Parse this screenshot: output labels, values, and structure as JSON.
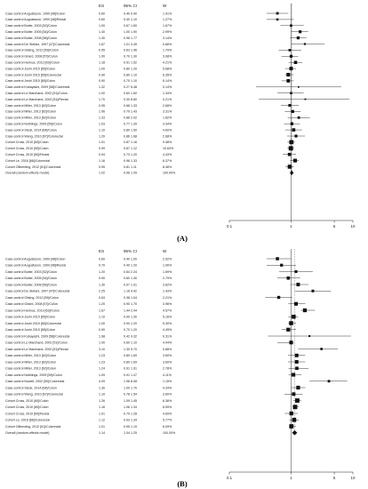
{
  "header": {
    "es": "ES",
    "ci": "95% CI",
    "w": "W"
  },
  "panels": [
    {
      "label": "(A)"
    },
    {
      "label": "(B)"
    }
  ],
  "chart_data": [
    {
      "type": "forest",
      "x_scale": "log",
      "xlim": [
        0.1,
        10
      ],
      "x_ticks": [
        "0.1",
        "1",
        "5",
        "10"
      ],
      "summary_label": "Overall (random-effects model)",
      "rows": [
        {
          "study": "Case-control Augustsson, 1999 [48]/Colon",
          "es": "0.60",
          "ci": "0.40   0.90",
          "w": "1.91%",
          "e": 0.6,
          "l": 0.4,
          "u": 0.9
        },
        {
          "study": "Case-control Augustsson, 1999 [48]/Rectal",
          "es": "0.60",
          "ci": "0.40   1.10",
          "w": "1.27%",
          "e": 0.6,
          "l": 0.4,
          "u": 1.1
        },
        {
          "study": "Case-control Butler, 2003 [52]/Colon",
          "es": "1.00",
          "ci": "0.67   1.60",
          "w": "1.67%",
          "e": 1.0,
          "l": 0.67,
          "u": 1.6
        },
        {
          "study": "Case-control Butler, 2005 [54]/Colon",
          "es": "1.40",
          "ci": "1.00   1.90",
          "w": "2.99%",
          "e": 1.4,
          "l": 1.0,
          "u": 1.9
        },
        {
          "study": "Case-control Butler, 2008 [56]/Colon",
          "es": "1.30",
          "ci": "0.96   1.77",
          "w": "3.14%",
          "e": 1.3,
          "l": 0.96,
          "u": 1.77
        },
        {
          "study": "Case-control De Stefani, 1997 [47]/Colorectal",
          "es": "1.67",
          "ci": "1.01   3.49",
          "w": "0.66%",
          "e": 1.67,
          "l": 1.01,
          "u": 3.49
        },
        {
          "study": "Case-control Gilsing, 2012 [59]/Colon",
          "es": "0.95",
          "ci": "0.63   1.46",
          "w": "1.79%",
          "e": 0.95,
          "l": 0.63,
          "u": 1.46
        },
        {
          "study": "Case-control Girard, 2008 [57]/Colon",
          "es": "1.00",
          "ci": "0.70   1.30",
          "w": "3.08%",
          "e": 1.0,
          "l": 0.7,
          "u": 1.3
        },
        {
          "study": "Case-control Helmus, 2013 [63]/Colon",
          "es": "1.18",
          "ci": "0.91   1.52",
          "w": "4.21%",
          "e": 1.18,
          "l": 0.91,
          "u": 1.52
        },
        {
          "study": "Case-control Joshi 2015 [65]/Colon",
          "es": "1.00",
          "ci": "0.80   1.20",
          "w": "5.68%",
          "e": 1.0,
          "l": 0.8,
          "u": 1.2
        },
        {
          "study": "Case-control Joshi 2015 [65]/Colorectal",
          "es": "0.90",
          "ci": "0.80   1.10",
          "w": "6.35%",
          "e": 0.9,
          "l": 0.8,
          "u": 1.1
        },
        {
          "study": "Case-control Joshi 2015 [65]/Colon",
          "es": "0.90",
          "ci": "0.70   1.10",
          "w": "5.14%",
          "e": 0.9,
          "l": 0.7,
          "u": 1.1
        },
        {
          "study": "Case-control Kobayashi, 2009 [58]/Colorectal",
          "es": "1.32",
          "ci": "0.27   6.48",
          "w": "0.14%",
          "e": 1.32,
          "l": 0.27,
          "u": 6.48
        },
        {
          "study": "Case-control Le Marchand, 2002 [51]/Colon",
          "es": "1.00",
          "ci": "0.60   1.60",
          "w": "1.34%",
          "e": 1.0,
          "l": 0.6,
          "u": 1.6
        },
        {
          "study": "Case-control Le Marchand, 2002 [51]/Rectal",
          "es": "1.70",
          "ci": "0.30   8.80",
          "w": "0.21%",
          "e": 1.7,
          "l": 0.3,
          "u": 8.8
        },
        {
          "study": "Case-control Miller, 2013 [62]/Colon",
          "es": "0.95",
          "ci": "0.68   1.33",
          "w": "2.68%",
          "e": 0.95,
          "l": 0.68,
          "u": 1.33
        },
        {
          "study": "Case-control Miller, 2013 [62]/Colon",
          "es": "1.06",
          "ci": "0.79   1.43",
          "w": "3.31%",
          "e": 1.06,
          "l": 0.79,
          "u": 1.43
        },
        {
          "study": "Case-control Miller, 2013 [62]/Colon",
          "es": "1.33",
          "ci": "0.88   2.02",
          "w": "1.82%",
          "e": 1.33,
          "l": 0.88,
          "u": 2.02
        },
        {
          "study": "Case-control Nothlings, 2009 [59]/Colon",
          "es": "1.03",
          "ci": "0.77   1.39",
          "w": "3.34%",
          "e": 1.03,
          "l": 0.77,
          "u": 1.39
        },
        {
          "study": "Case-control Steck, 2014 [64]/Colon",
          "es": "1.10",
          "ci": "0.80   1.50",
          "w": "4.60%",
          "e": 1.1,
          "l": 0.8,
          "u": 1.5
        },
        {
          "study": "Case-control Wang, 2010 [67]/Colorectal",
          "es": "1.20",
          "ci": "0.86   1.68",
          "w": "2.68%",
          "e": 1.2,
          "l": 0.86,
          "u": 1.68
        },
        {
          "study": "Cohort Cross, 2010 [60]/Colon",
          "es": "1.01",
          "ci": "0.87   1.16",
          "w": "9.48%",
          "e": 1.01,
          "l": 0.87,
          "u": 1.16
        },
        {
          "study": "Cohort Cross, 2010 [60]/Colon",
          "es": "0.99",
          "ci": "0.87   1.12",
          "w": "10.63%",
          "e": 0.99,
          "l": 0.87,
          "u": 1.12
        },
        {
          "study": "Cohort Cross, 2010 [60]/Rectal",
          "es": "0.94",
          "ci": "0.73   1.20",
          "w": "4.43%",
          "e": 0.94,
          "l": 0.73,
          "u": 1.2
        },
        {
          "study": "Cohort Le, 2016 [66]/Colorectal",
          "es": "1.16",
          "ci": "0.96   1.33",
          "w": "6.37%",
          "e": 1.16,
          "l": 0.96,
          "u": 1.33
        },
        {
          "study": "Cohort Ollberding, 2012 [61]/Colorectal",
          "es": "0.95",
          "ci": "0.81   1.11",
          "w": "8.46%",
          "e": 0.95,
          "l": 0.81,
          "u": 1.11
        },
        {
          "study": "Overall (random-effects model)",
          "es": "1.02",
          "ci": "0.96   1.09",
          "w": "100.00%",
          "e": 1.02,
          "l": 0.96,
          "u": 1.09,
          "summary": true
        }
      ]
    },
    {
      "type": "forest",
      "x_scale": "log",
      "xlim": [
        0.1,
        10
      ],
      "x_ticks": [
        "0.1",
        "1",
        "5",
        "10"
      ],
      "summary_label": "Overall (random-effects model)",
      "rows": [
        {
          "study": "Case-control Augustsson, 1999 [48]/Colon",
          "es": "0.60",
          "ci": "0.40   1.00",
          "w": "2.52%",
          "e": 0.6,
          "l": 0.4,
          "u": 1.0
        },
        {
          "study": "Case-control Augustsson, 1999 [48]/Rectal",
          "es": "0.70",
          "ci": "0.40   1.20",
          "w": "1.90%",
          "e": 0.7,
          "l": 0.4,
          "u": 1.2
        },
        {
          "study": "Case-control Butler, 2003 [52]/Colon",
          "es": "1.20",
          "ci": "0.64   2.24",
          "w": "1.59%",
          "e": 1.2,
          "l": 0.64,
          "u": 2.24
        },
        {
          "study": "Case-control Butler, 2005 [54]/Colon",
          "es": "0.90",
          "ci": "0.60   1.40",
          "w": "2.79%",
          "e": 0.9,
          "l": 0.6,
          "u": 1.4
        },
        {
          "study": "Case-control Butler, 2008 [56]/Colon",
          "es": "1.30",
          "ci": "0.97   1.91",
          "w": "3.62%",
          "e": 1.3,
          "l": 0.97,
          "u": 1.91
        },
        {
          "study": "Case-control De Stefani, 1997 [47]/Colorectal",
          "es": "2.25",
          "ci": "1.16   4.42",
          "w": "1.43%",
          "e": 2.25,
          "l": 1.16,
          "u": 4.42
        },
        {
          "study": "Case-control Gilsing, 2012 [59]/Colon",
          "es": "0.63",
          "ci": "0.38   1.04",
          "w": "2.21%",
          "e": 0.63,
          "l": 0.38,
          "u": 1.04
        },
        {
          "study": "Case-control Girard, 2008 [57]/Colon",
          "es": "1.20",
          "ci": "0.90   1.70",
          "w": "3.96%",
          "e": 1.2,
          "l": 0.9,
          "u": 1.7
        },
        {
          "study": "Case-control Helmus, 2013 [63]/Colon",
          "es": "1.67",
          "ci": "1.44   2.44",
          "w": "4.57%",
          "e": 1.67,
          "l": 1.44,
          "u": 2.44
        },
        {
          "study": "Case-control Joshi 2015 [65]/Colon",
          "es": "1.10",
          "ci": "0.90   1.30",
          "w": "5.16%",
          "e": 1.1,
          "l": 0.9,
          "u": 1.3
        },
        {
          "study": "Case-control Joshi 2015 [65]/Colorectal",
          "es": "1.00",
          "ci": "0.90   1.20",
          "w": "5.30%",
          "e": 1.0,
          "l": 0.9,
          "u": 1.2
        },
        {
          "study": "Case-control Joshi 2015 [65]/Colon",
          "es": "0.90",
          "ci": "0.70   1.20",
          "w": "4.49%",
          "e": 0.9,
          "l": 0.7,
          "u": 1.2
        },
        {
          "study": "Case-control Kobayashi, 2009 [58]/Colorectal",
          "es": "1.98",
          "ci": "0.42   9.32",
          "w": "0.31%",
          "e": 1.98,
          "l": 0.42,
          "u": 9.32
        },
        {
          "study": "Case-control Le Marchand, 2002 [51]/Colon",
          "es": "1.00",
          "ci": "0.60   1.10",
          "w": "4.04%",
          "e": 1.0,
          "l": 0.6,
          "u": 1.1
        },
        {
          "study": "Case-control Le Marchand, 2002 [51]/Rectal",
          "es": "3.10",
          "ci": "1.30   5.70",
          "w": "0.88%",
          "e": 3.1,
          "l": 1.3,
          "u": 5.7
        },
        {
          "study": "Case-control Miller, 2013 [62]/Colon",
          "es": "1.23",
          "ci": "0.89   1.69",
          "w": "3.60%",
          "e": 1.23,
          "l": 0.89,
          "u": 1.69
        },
        {
          "study": "Case-control Miller, 2013 [62]/Colon",
          "es": "1.23",
          "ci": "0.89   1.69",
          "w": "3.60%",
          "e": 1.23,
          "l": 0.89,
          "u": 1.69
        },
        {
          "study": "Case-control Miller, 2013 [62]/Colon",
          "es": "1.24",
          "ci": "0.91   1.91",
          "w": "2.78%",
          "e": 1.24,
          "l": 0.91,
          "u": 1.91
        },
        {
          "study": "Case-control Nothlings, 2009 [59]/Colon",
          "es": "1.09",
          "ci": "0.91   1.47",
          "w": "4.11%",
          "e": 1.09,
          "l": 0.91,
          "u": 1.47
        },
        {
          "study": "Case-control Nowell, 2002 [50]/Colorectal",
          "es": "4.09",
          "ci": "1.98   8.08",
          "w": "1.15%",
          "e": 4.09,
          "l": 1.98,
          "u": 8.08
        },
        {
          "study": "Case-control Steck, 2014 [64]/Colon",
          "es": "1.30",
          "ci": "1.00   1.70",
          "w": "4.34%",
          "e": 1.3,
          "l": 1.0,
          "u": 1.7
        },
        {
          "study": "Case-control Wang, 2010 [67]/Colorectal",
          "es": "1.10",
          "ci": "0.78   1.54",
          "w": "3.60%",
          "e": 1.1,
          "l": 0.78,
          "u": 1.54
        },
        {
          "study": "Cohort Cross, 2010 [60]/Colon",
          "es": "1.26",
          "ci": "1.09   1.45",
          "w": "6.36%",
          "e": 1.26,
          "l": 1.09,
          "u": 1.45
        },
        {
          "study": "Cohort Cross, 2010 [60]/Colon",
          "es": "1.16",
          "ci": "1.06   1.34",
          "w": "6.59%",
          "e": 1.16,
          "l": 1.06,
          "u": 1.34
        },
        {
          "study": "Cohort Cross, 2010 [60]/Rectal",
          "es": "1.01",
          "ci": "0.79   1.28",
          "w": "4.69%",
          "e": 1.01,
          "l": 0.79,
          "u": 1.28
        },
        {
          "study": "Cohort Le, 2016 [66]/Colorectal",
          "es": "1.12",
          "ci": "0.93   1.34",
          "w": "5.77%",
          "e": 1.12,
          "l": 0.93,
          "u": 1.34
        },
        {
          "study": "Cohort Ollberding, 2012 [61]/Colorectal",
          "es": "1.01",
          "ci": "0.95   1.19",
          "w": "6.09%",
          "e": 1.01,
          "l": 0.95,
          "u": 1.19
        },
        {
          "study": "Overall (random-effects model)",
          "es": "1.14",
          "ci": "1.04   1.25",
          "w": "100.00%",
          "e": 1.14,
          "l": 1.04,
          "u": 1.25,
          "summary": true
        }
      ]
    }
  ]
}
